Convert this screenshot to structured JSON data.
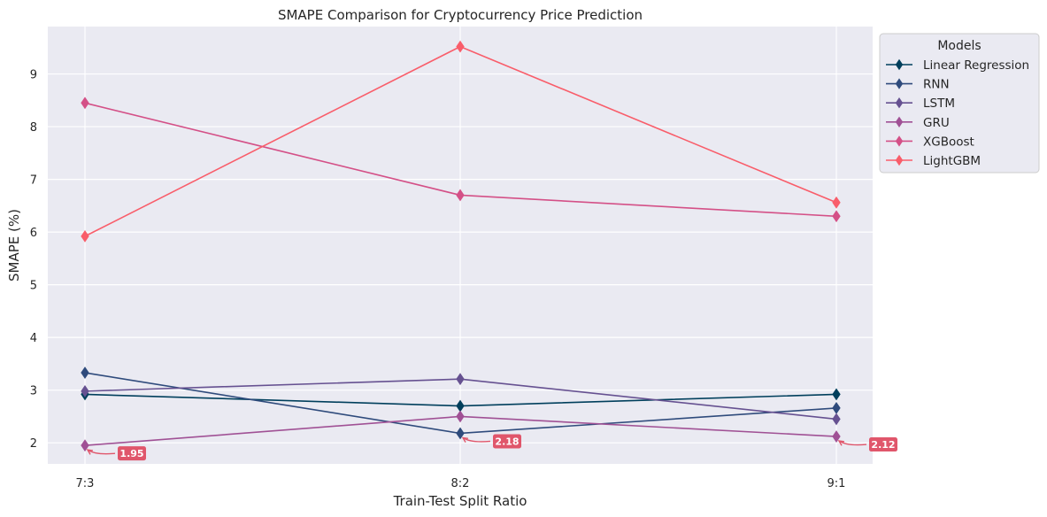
{
  "chart_data": {
    "type": "line",
    "title": "SMAPE Comparison for Cryptocurrency Price Prediction",
    "xlabel": "Train-Test Split Ratio",
    "ylabel": "SMAPE (%)",
    "categories": [
      "7:3",
      "8:2",
      "9:1"
    ],
    "ylim": [
      1.6,
      9.9
    ],
    "yticks": [
      "2",
      "3",
      "4",
      "5",
      "6",
      "7",
      "8",
      "9"
    ],
    "grid": true,
    "legend": {
      "title": "Models",
      "placement": "outside-top-right"
    },
    "series": [
      {
        "name": "Linear Regression",
        "color": "#003f5c",
        "values": [
          2.92,
          2.7,
          2.92
        ]
      },
      {
        "name": "RNN",
        "color": "#2f4b7c",
        "values": [
          3.33,
          2.18,
          2.66
        ]
      },
      {
        "name": "LSTM",
        "color": "#665191",
        "values": [
          2.98,
          3.21,
          2.45
        ]
      },
      {
        "name": "GRU",
        "color": "#a05195",
        "values": [
          1.95,
          2.5,
          2.12
        ]
      },
      {
        "name": "XGBoost",
        "color": "#d45087",
        "values": [
          8.45,
          6.7,
          6.3
        ]
      },
      {
        "name": "LightGBM",
        "color": "#f95d6a",
        "values": [
          5.92,
          9.52,
          6.56
        ]
      }
    ],
    "annotations": [
      {
        "category": "7:3",
        "value": 1.95,
        "text": "1.95"
      },
      {
        "category": "8:2",
        "value": 2.18,
        "text": "2.18"
      },
      {
        "category": "9:1",
        "value": 2.12,
        "text": "2.12"
      }
    ],
    "annotation_color": "#e0566b"
  }
}
